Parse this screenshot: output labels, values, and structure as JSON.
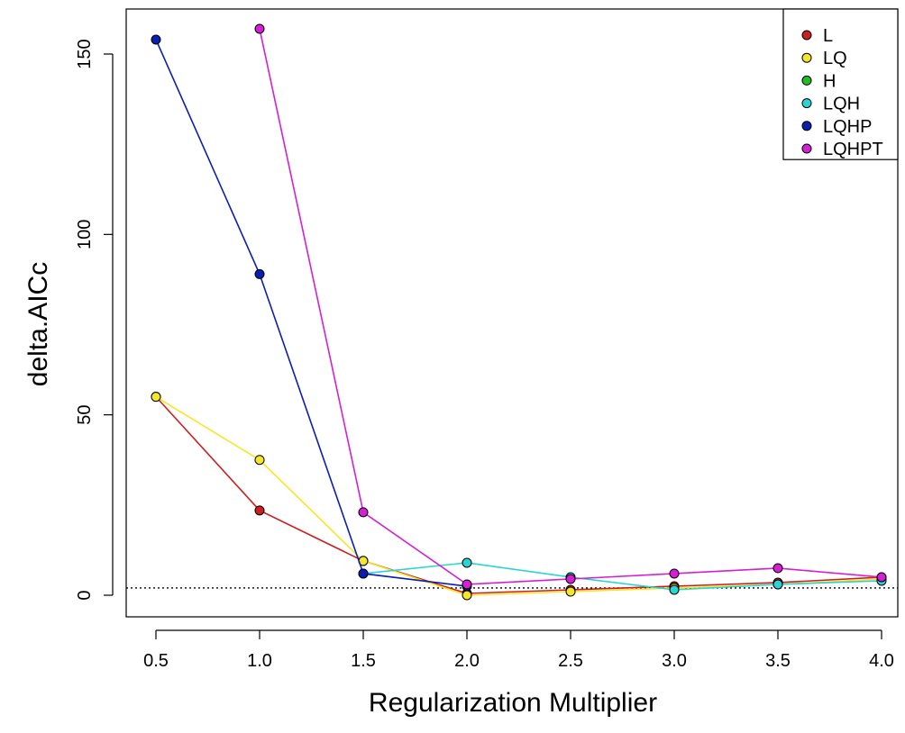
{
  "chart_data": {
    "type": "line",
    "title": "",
    "xlabel": "Regularization Multiplier",
    "ylabel": "delta.AICc",
    "x": [
      0.5,
      1.0,
      1.5,
      2.0,
      2.5,
      3.0,
      3.5,
      4.0
    ],
    "x_tick_labels": [
      "0.5",
      "1.0",
      "1.5",
      "2.0",
      "2.5",
      "3.0",
      "3.5",
      "4.0"
    ],
    "y_ticks": [
      0,
      50,
      100,
      150
    ],
    "y_tick_labels": [
      "0",
      "50",
      "100",
      "150"
    ],
    "xlim": [
      0.5,
      4.0
    ],
    "ylim": [
      0,
      157
    ],
    "reference_line": {
      "y": 2,
      "style": "dotted"
    },
    "grid": false,
    "legend_position": "top-right",
    "series": [
      {
        "name": "L",
        "color": "#cc1f1f",
        "values": [
          55,
          23.5,
          9.5,
          0.5,
          1.5,
          2.5,
          3.5,
          5
        ]
      },
      {
        "name": "LQ",
        "color": "#f5e627",
        "values": [
          55,
          37.5,
          9.5,
          0,
          1,
          2,
          3,
          4.5
        ]
      },
      {
        "name": "H",
        "color": "#1fbf1f",
        "values": [
          null,
          null,
          null,
          null,
          null,
          null,
          null,
          null
        ]
      },
      {
        "name": "LQH",
        "color": "#2ad4d4",
        "values": [
          null,
          null,
          6,
          9,
          5,
          1.5,
          3,
          4
        ]
      },
      {
        "name": "LQHP",
        "color": "#0a1eb4",
        "values": [
          154,
          89,
          6,
          2.5,
          null,
          null,
          null,
          null
        ]
      },
      {
        "name": "LQHPT",
        "color": "#d41fd4",
        "values": [
          null,
          157,
          23,
          3,
          4.5,
          6,
          7.5,
          5
        ]
      }
    ]
  }
}
